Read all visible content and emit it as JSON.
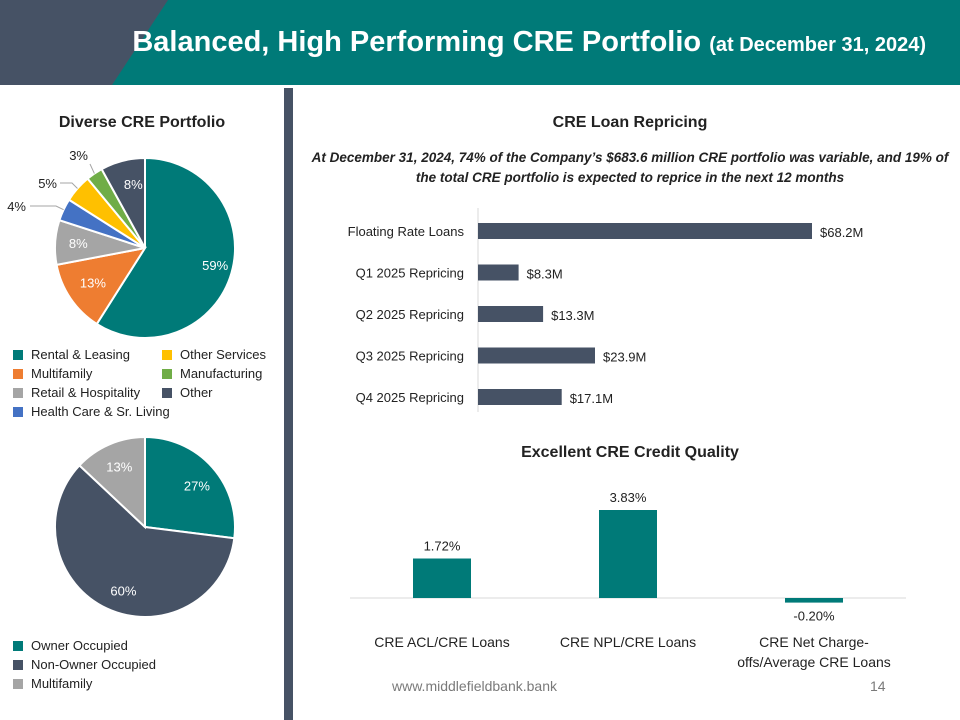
{
  "header": {
    "title": "Balanced, High Performing CRE Portfolio",
    "subtitle": "(at December 31, 2024)",
    "accent": "#007a78",
    "dark": "#465265"
  },
  "footer": {
    "url": "www.middlefieldbank.bank",
    "page": "14"
  },
  "chart_data": [
    {
      "type": "pie",
      "title": "Diverse CRE Portfolio",
      "categories": [
        "Rental & Leasing",
        "Multifamily",
        "Retail & Hospitality",
        "Health Care & Sr. Living",
        "Other Services",
        "Manufacturing",
        "Other"
      ],
      "values": [
        59,
        13,
        8,
        4,
        5,
        3,
        8
      ],
      "labels": [
        "59%",
        "13%",
        "8%",
        "4%",
        "5%",
        "3%",
        "8%"
      ],
      "colors": [
        "#007a78",
        "#ee7d31",
        "#a5a5a5",
        "#4472c4",
        "#ffc000",
        "#70ad47",
        "#465265"
      ],
      "legend": "bottom"
    },
    {
      "type": "pie",
      "title": "",
      "categories": [
        "Owner Occupied",
        "Non-Owner Occupied",
        "Multifamily"
      ],
      "values": [
        27,
        60,
        13
      ],
      "labels": [
        "27%",
        "60%",
        "13%"
      ],
      "colors": [
        "#007a78",
        "#465265",
        "#a5a5a5"
      ],
      "legend": "bottom"
    },
    {
      "type": "bar",
      "orientation": "horizontal",
      "title": "CRE Loan Repricing",
      "note": "At December 31, 2024, 74% of the Company’s $683.6 million CRE portfolio was variable, and 19% of the total CRE portfolio is expected to reprice in the next 12 months",
      "categories": [
        "Floating Rate Loans",
        "Q1 2025 Repricing",
        "Q2 2025 Repricing",
        "Q3 2025 Repricing",
        "Q4 2025 Repricing"
      ],
      "values": [
        68.2,
        8.3,
        13.3,
        23.9,
        17.1
      ],
      "labels": [
        "$68.2M",
        "$8.3M",
        "$13.3M",
        "$23.9M",
        "$17.1M"
      ],
      "xlim": [
        0,
        68.2
      ],
      "color": "#465265"
    },
    {
      "type": "bar",
      "title": "Excellent CRE Credit Quality",
      "categories": [
        "CRE ACL/CRE Loans",
        "CRE NPL/CRE Loans",
        "CRE Net Charge-offs/Average CRE Loans"
      ],
      "category_lines": [
        [
          "CRE ACL/CRE Loans"
        ],
        [
          "CRE NPL/CRE Loans"
        ],
        [
          "CRE Net Charge-",
          "offs/Average CRE Loans"
        ]
      ],
      "values": [
        1.72,
        3.83,
        -0.2
      ],
      "labels": [
        "1.72%",
        "3.83%",
        "-0.20%"
      ],
      "ylim": [
        -0.2,
        3.83
      ],
      "color": "#007a78"
    }
  ]
}
